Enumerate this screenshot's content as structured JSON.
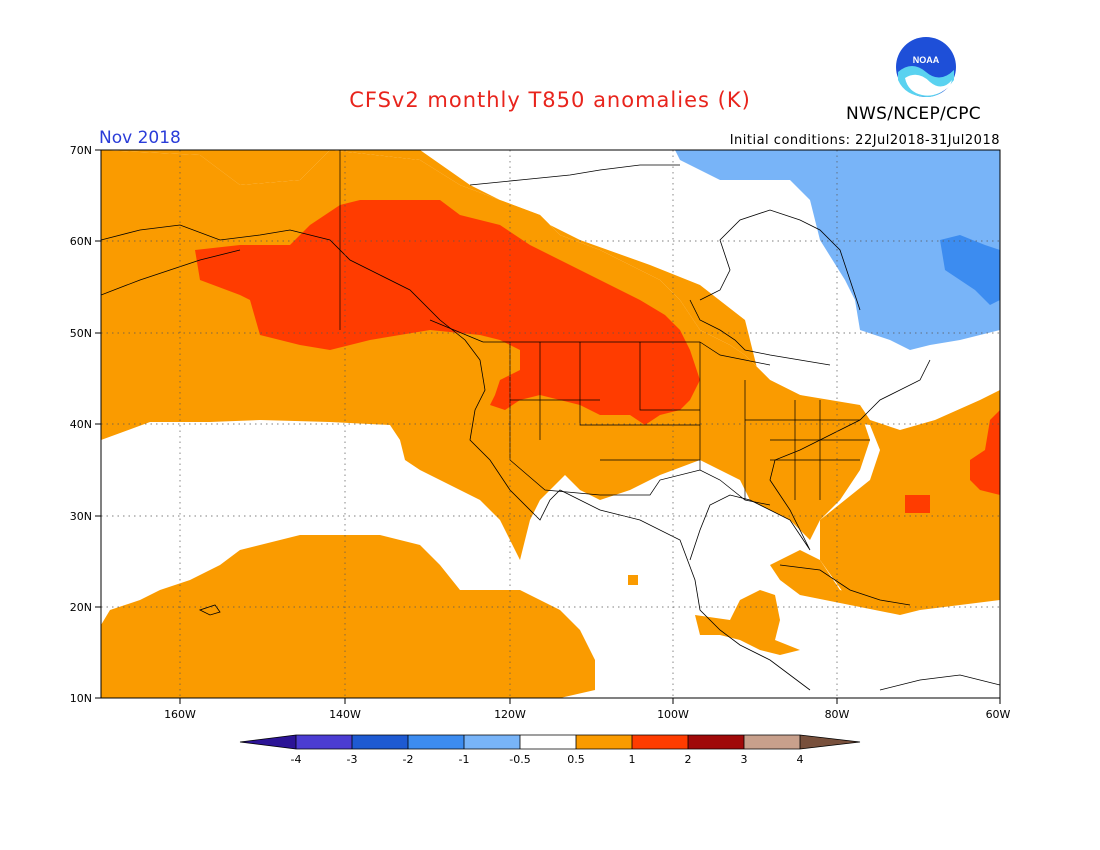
{
  "header": {
    "title": "CFSv2 monthly T850 anomalies (K)",
    "organization": "NWS/NCEP/CPC",
    "logo_text": "NOAA",
    "month": "Nov 2018",
    "initial_conditions": "Initial conditions: 22Jul2018-31Jul2018"
  },
  "axes": {
    "lat_labels": [
      "70N",
      "60N",
      "50N",
      "40N",
      "30N",
      "20N",
      "10N"
    ],
    "lon_labels": [
      "160W",
      "140W",
      "120W",
      "100W",
      "80W",
      "60W"
    ]
  },
  "colorbar": {
    "labels": [
      "-4",
      "-3",
      "-2",
      "-1",
      "-0.5",
      "0.5",
      "1",
      "2",
      "3",
      "4"
    ],
    "colors": [
      "#2c1496",
      "#4b3cd2",
      "#1e5ad2",
      "#3c8cf0",
      "#78b4f8",
      "#ffffff",
      "#fa9b00",
      "#ff3c00",
      "#a00a0a",
      "#c8a08c",
      "#78503c"
    ]
  },
  "anomaly_colors": {
    "orange_0_5_to_1": "#fa9b00",
    "red_1_to_2": "#ff3c00",
    "lightblue_minus_1_to_minus_0_5": "#78b4f8",
    "blue_minus_2_to_minus_1": "#3c8cf0"
  }
}
